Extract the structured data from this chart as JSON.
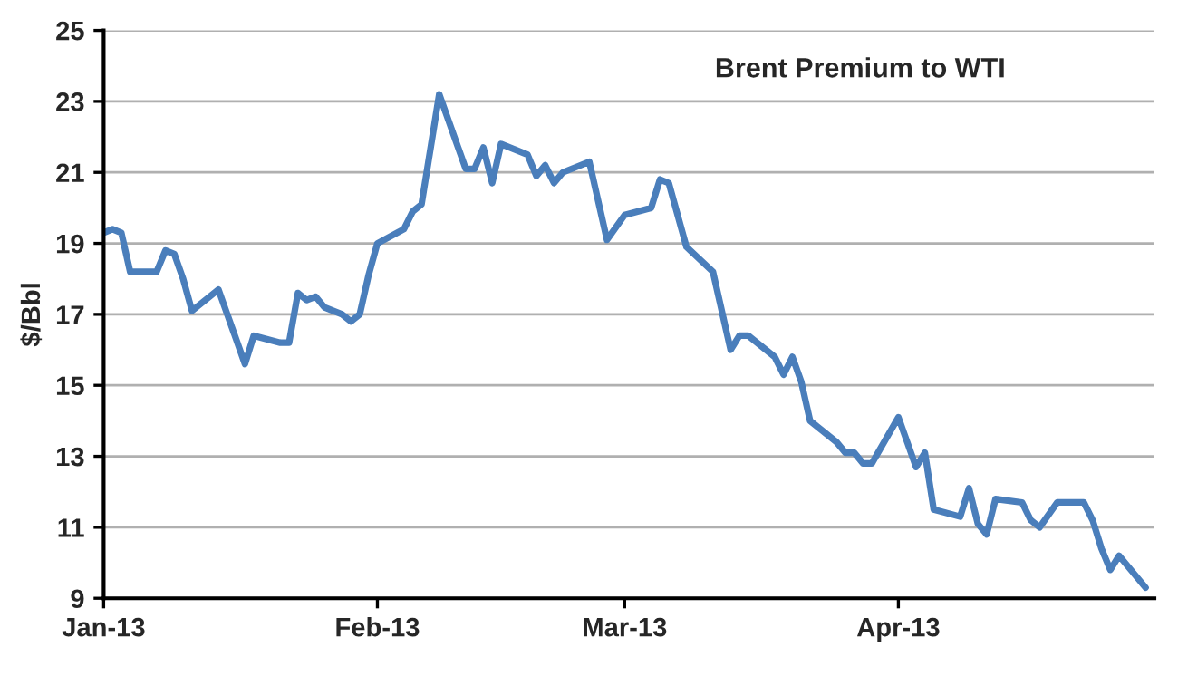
{
  "chart_data": {
    "type": "line",
    "title": "Brent Premium to WTI",
    "ylabel": "$/Bbl",
    "x": [
      "2013-01-01",
      "2013-01-02",
      "2013-01-03",
      "2013-01-04",
      "2013-01-07",
      "2013-01-08",
      "2013-01-09",
      "2013-01-10",
      "2013-01-11",
      "2013-01-14",
      "2013-01-17",
      "2013-01-18",
      "2013-01-21",
      "2013-01-22",
      "2013-01-23",
      "2013-01-24",
      "2013-01-25",
      "2013-01-26",
      "2013-01-28",
      "2013-01-29",
      "2013-01-30",
      "2013-01-31",
      "2013-02-01",
      "2013-02-04",
      "2013-02-05",
      "2013-02-06",
      "2013-02-08",
      "2013-02-11",
      "2013-02-12",
      "2013-02-13",
      "2013-02-14",
      "2013-02-15",
      "2013-02-18",
      "2013-02-19",
      "2013-02-20",
      "2013-02-21",
      "2013-02-22",
      "2013-02-25",
      "2013-02-27",
      "2013-03-01",
      "2013-03-04",
      "2013-03-05",
      "2013-03-06",
      "2013-03-08",
      "2013-03-11",
      "2013-03-13",
      "2013-03-14",
      "2013-03-15",
      "2013-03-18",
      "2013-03-19",
      "2013-03-20",
      "2013-03-21",
      "2013-03-22",
      "2013-03-25",
      "2013-03-26",
      "2013-03-27",
      "2013-03-28",
      "2013-03-29",
      "2013-04-01",
      "2013-04-02",
      "2013-04-03",
      "2013-04-04",
      "2013-04-05",
      "2013-04-08",
      "2013-04-09",
      "2013-04-10",
      "2013-04-11",
      "2013-04-12",
      "2013-04-15",
      "2013-04-16",
      "2013-04-17",
      "2013-04-19",
      "2013-04-22",
      "2013-04-23",
      "2013-04-24",
      "2013-04-25",
      "2013-04-26",
      "2013-04-27",
      "2013-04-29"
    ],
    "series": [
      {
        "color": "#4a7ebb",
        "values": [
          19.3,
          19.4,
          19.3,
          18.2,
          18.2,
          18.8,
          18.7,
          18.0,
          17.1,
          17.7,
          15.6,
          16.4,
          16.2,
          16.2,
          17.6,
          17.4,
          17.5,
          17.2,
          17.0,
          16.8,
          17.0,
          18.1,
          19.0,
          19.4,
          19.9,
          20.1,
          23.2,
          21.1,
          21.1,
          21.7,
          20.7,
          21.8,
          21.5,
          20.9,
          21.2,
          20.7,
          21.0,
          21.3,
          19.1,
          19.8,
          20.0,
          20.8,
          20.7,
          18.9,
          18.2,
          16.0,
          16.4,
          16.4,
          15.8,
          15.3,
          15.8,
          15.1,
          14.0,
          13.4,
          13.1,
          13.1,
          12.8,
          12.8,
          14.1,
          13.4,
          12.7,
          13.1,
          11.5,
          11.3,
          12.1,
          11.1,
          10.8,
          11.8,
          11.7,
          11.2,
          11.0,
          11.7,
          11.7,
          11.2,
          10.4,
          9.8,
          10.2,
          9.9,
          9.3
        ]
      }
    ],
    "xlim": [
      "2013-01-01",
      "2013-04-30"
    ],
    "xticks": [
      {
        "value": "2013-01-01",
        "label": "Jan-13"
      },
      {
        "value": "2013-02-01",
        "label": "Feb-13"
      },
      {
        "value": "2013-03-01",
        "label": "Mar-13"
      },
      {
        "value": "2013-04-01",
        "label": "Apr-13"
      }
    ],
    "ylim": [
      9,
      25
    ],
    "yticks": [
      9,
      11,
      13,
      15,
      17,
      19,
      21,
      23,
      25
    ],
    "grid": "y",
    "marker": "none",
    "line_style": "solid",
    "legend": false
  }
}
